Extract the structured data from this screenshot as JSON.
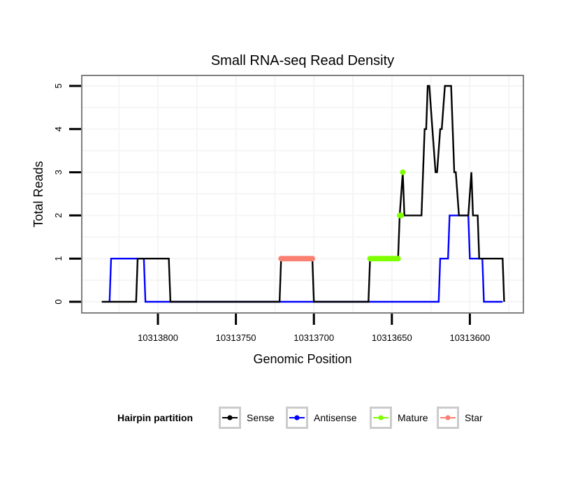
{
  "chart_data": {
    "type": "line",
    "title": "Small RNA-seq Read Density",
    "xlabel": "Genomic Position",
    "ylabel": "Total Reads",
    "x_reversed": true,
    "xlim": [
      10313849,
      10313566
    ],
    "ylim": [
      -0.25,
      5.25
    ],
    "x_ticks": [
      10313800,
      10313750,
      10313700,
      10313650,
      10313600
    ],
    "x_tick_labels": [
      "10313800",
      "10313750",
      "10313700",
      "10313650",
      "10313600"
    ],
    "y_ticks": [
      0,
      1,
      2,
      3,
      4,
      5
    ],
    "y_tick_labels": [
      "0",
      "1",
      "2",
      "3",
      "4",
      "5"
    ],
    "grid": true,
    "legend": {
      "title": "Hairpin partition",
      "placement": "bottom",
      "entries": [
        {
          "label": "Sense",
          "color": "#000000"
        },
        {
          "label": "Antisense",
          "color": "#0000ff"
        },
        {
          "label": "Mature",
          "color": "#7fff00"
        },
        {
          "label": "Star",
          "color": "#fa8072"
        }
      ]
    },
    "series": [
      {
        "name": "Sense",
        "color": "#000000",
        "style": "line",
        "points": [
          [
            10313836,
            0
          ],
          [
            10313814,
            0
          ],
          [
            10313813,
            1
          ],
          [
            10313793,
            1
          ],
          [
            10313792,
            0
          ],
          [
            10313722,
            0
          ],
          [
            10313721,
            1
          ],
          [
            10313701,
            1
          ],
          [
            10313700,
            0
          ],
          [
            10313665,
            0
          ],
          [
            10313664,
            1
          ],
          [
            10313646,
            1
          ],
          [
            10313645,
            2
          ],
          [
            10313643,
            3
          ],
          [
            10313642,
            2
          ],
          [
            10313631,
            2
          ],
          [
            10313629,
            4
          ],
          [
            10313628,
            4
          ],
          [
            10313627,
            5
          ],
          [
            10313626,
            5
          ],
          [
            10313624,
            4
          ],
          [
            10313622,
            3
          ],
          [
            10313621,
            3
          ],
          [
            10313619,
            4
          ],
          [
            10313618,
            4
          ],
          [
            10313616,
            5
          ],
          [
            10313612,
            5
          ],
          [
            10313610,
            3
          ],
          [
            10313609,
            3
          ],
          [
            10313607,
            2
          ],
          [
            10313601,
            2
          ],
          [
            10313599,
            3
          ],
          [
            10313598,
            2
          ],
          [
            10313595,
            2
          ],
          [
            10313594,
            1
          ],
          [
            10313579,
            1
          ],
          [
            10313578,
            0
          ]
        ]
      },
      {
        "name": "Antisense",
        "color": "#0000ff",
        "style": "line",
        "points": [
          [
            10313831,
            0
          ],
          [
            10313830,
            1
          ],
          [
            10313809,
            1
          ],
          [
            10313808,
            0
          ],
          [
            10313620,
            0
          ],
          [
            10313619,
            1
          ],
          [
            10313614,
            1
          ],
          [
            10313613,
            2
          ],
          [
            10313601,
            2
          ],
          [
            10313600,
            1
          ],
          [
            10313592,
            1
          ],
          [
            10313591,
            0
          ],
          [
            10313579,
            0
          ]
        ]
      },
      {
        "name": "Mature",
        "color": "#7fff00",
        "style": "points",
        "points": [
          [
            10313664,
            1
          ],
          [
            10313663,
            1
          ],
          [
            10313662,
            1
          ],
          [
            10313661,
            1
          ],
          [
            10313660,
            1
          ],
          [
            10313659,
            1
          ],
          [
            10313658,
            1
          ],
          [
            10313657,
            1
          ],
          [
            10313656,
            1
          ],
          [
            10313655,
            1
          ],
          [
            10313654,
            1
          ],
          [
            10313653,
            1
          ],
          [
            10313652,
            1
          ],
          [
            10313651,
            1
          ],
          [
            10313650,
            1
          ],
          [
            10313649,
            1
          ],
          [
            10313648,
            1
          ],
          [
            10313647,
            1
          ],
          [
            10313646,
            1
          ],
          [
            10313645,
            2
          ],
          [
            10313644,
            2
          ],
          [
            10313643,
            3
          ]
        ]
      },
      {
        "name": "Star",
        "color": "#fa8072",
        "style": "points",
        "points": [
          [
            10313721,
            1
          ],
          [
            10313720,
            1
          ],
          [
            10313719,
            1
          ],
          [
            10313718,
            1
          ],
          [
            10313717,
            1
          ],
          [
            10313716,
            1
          ],
          [
            10313715,
            1
          ],
          [
            10313714,
            1
          ],
          [
            10313713,
            1
          ],
          [
            10313712,
            1
          ],
          [
            10313711,
            1
          ],
          [
            10313710,
            1
          ],
          [
            10313709,
            1
          ],
          [
            10313708,
            1
          ],
          [
            10313707,
            1
          ],
          [
            10313706,
            1
          ],
          [
            10313705,
            1
          ],
          [
            10313704,
            1
          ],
          [
            10313703,
            1
          ],
          [
            10313702,
            1
          ],
          [
            10313701,
            1
          ]
        ]
      }
    ]
  }
}
